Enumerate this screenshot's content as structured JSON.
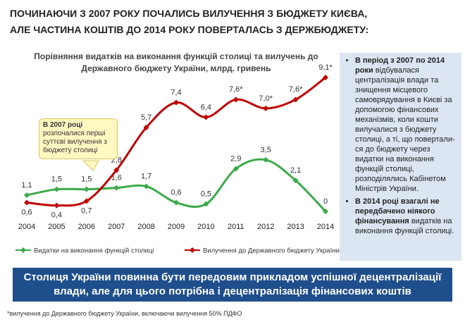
{
  "header": {
    "title_lines": [
      "ПОЧИНАЮЧИ З 2007 РОКУ ПОЧАЛИСЬ ВИЛУЧЕННЯ З БЮДЖЕТУ КИЄВА,",
      "АЛЕ ЧАСТИНА КОШТІВ ДО 2014 РОКУ ПОВЕРТАЛАСЬ З ДЕРЖБЮДЖЕТУ:"
    ]
  },
  "chart_data": {
    "type": "line",
    "title": "Порівняння видатків на виконання функцій столиці  та вилучень до Державного бюджету України, млрд. гривень",
    "categories": [
      "2004",
      "2005",
      "2006",
      "2007",
      "2008",
      "2009",
      "2010",
      "2011",
      "2012",
      "2013",
      "2014"
    ],
    "series": [
      {
        "name": "Видатки на виконання функцій столиці",
        "color": "#3caa4a",
        "values": [
          1.1,
          1.5,
          1.5,
          1.6,
          1.7,
          0.6,
          0.5,
          2.9,
          3.5,
          2.1,
          0
        ],
        "value_labels": [
          "1,1",
          "1,5",
          "1,5",
          "1,6",
          "1,7",
          "0,6",
          "0,5",
          "2,9",
          "3,5",
          "2,1",
          "0"
        ]
      },
      {
        "name": "Вилучення  до Державного бюджету України",
        "color": "#c00000",
        "values": [
          0.6,
          0.4,
          0.7,
          2.8,
          5.7,
          7.4,
          6.4,
          7.6,
          7.0,
          7.6,
          9.1
        ],
        "value_labels": [
          "0,6",
          "0,4",
          "0,7",
          "2,8",
          "5,7",
          "7,4",
          "6,4",
          "7,6*",
          "7,0*",
          "7,6*",
          "9,1*"
        ]
      }
    ]
  },
  "callout": {
    "bold": "В 2007 році",
    "text": "розпочалися перші суттєві вилучення  з бюджету столиці"
  },
  "sidebar": {
    "items": [
      {
        "bold": "В період з 2007 по 2014 роки",
        "text": "відбувалася централізація влади та знищення місцевого самоврядування в Києві за допомогою фінансових механізмів, коли кошти вилучалися  з бюджету столиці, а ті, що повертали­ся до бюджету через видатки на виконання функцій столиці, розподілялись Кабінетом Міністрів України."
      },
      {
        "bold": "В 2014 році взагалі не передбачено ніякого фінансування",
        "text": "видатків на виконання функцій столиці."
      }
    ]
  },
  "banner": {
    "text": "Столиця України повинна бути передовим прикладом успішної децентралізації влади, але для цього потрібна і децентралізація фінансових коштів"
  },
  "footnote": "*вилучення  до Державного бюджету України, включаючи вилучення 50% ПДФО"
}
